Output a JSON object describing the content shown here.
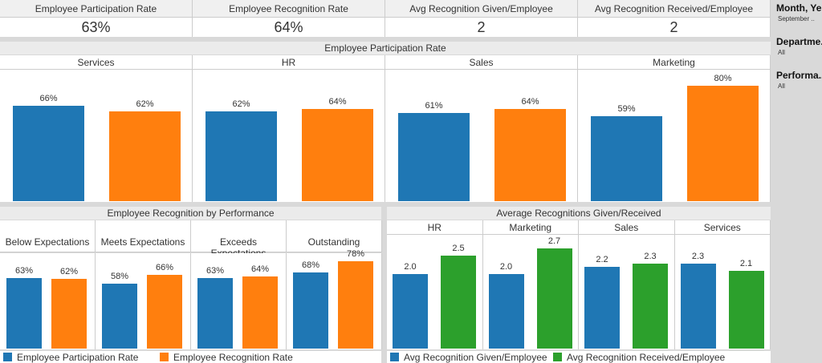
{
  "kpis": [
    {
      "label": "Employee Participation Rate",
      "value": "63%"
    },
    {
      "label": "Employee Recognition Rate",
      "value": "64%"
    },
    {
      "label": "Avg Recognition Given/Employee",
      "value": "2"
    },
    {
      "label": "Avg Recognition Received/Employee",
      "value": "2"
    }
  ],
  "filters": [
    {
      "label": "Month, Ye..",
      "value": "September .."
    },
    {
      "label": "Departme..",
      "value": "All"
    },
    {
      "label": "Performa..",
      "value": "All"
    }
  ],
  "colors": {
    "blue": "#1f77b4",
    "orange": "#ff7f0e",
    "green": "#2ca02c"
  },
  "chart_data": [
    {
      "type": "bar",
      "title": "Employee Participation Rate",
      "categories": [
        "Services",
        "HR",
        "Sales",
        "Marketing"
      ],
      "series": [
        {
          "name": "Employee Participation Rate",
          "values": [
            66,
            62,
            61,
            59
          ],
          "labels": [
            "66%",
            "62%",
            "61%",
            "59%"
          ]
        },
        {
          "name": "Employee Recognition Rate",
          "values": [
            62,
            64,
            64,
            80
          ],
          "labels": [
            "62%",
            "64%",
            "64%",
            "80%"
          ]
        }
      ]
    },
    {
      "type": "bar",
      "title": "Employee Recognition by Performance",
      "categories": [
        "Below Expectations",
        "Meets Expectations",
        "Exceeds Expectations",
        "Outstanding"
      ],
      "series": [
        {
          "name": "Employee Participation Rate",
          "values": [
            63,
            58,
            63,
            68
          ],
          "labels": [
            "63%",
            "58%",
            "63%",
            "68%"
          ]
        },
        {
          "name": "Employee Recognition Rate",
          "values": [
            62,
            66,
            64,
            78
          ],
          "labels": [
            "62%",
            "66%",
            "64%",
            "78%"
          ]
        }
      ]
    },
    {
      "type": "bar",
      "title": "Average Recognitions Given/Received",
      "categories": [
        "HR",
        "Marketing",
        "Sales",
        "Services"
      ],
      "series": [
        {
          "name": "Avg Recognition Given/Employee",
          "values": [
            2.0,
            2.0,
            2.2,
            2.3
          ],
          "labels": [
            "2.0",
            "2.0",
            "2.2",
            "2.3"
          ]
        },
        {
          "name": "Avg Recognition Received/Employee",
          "values": [
            2.5,
            2.7,
            2.3,
            2.1
          ],
          "labels": [
            "2.5",
            "2.7",
            "2.3",
            "2.1"
          ]
        }
      ]
    }
  ],
  "legends": {
    "left": [
      "Employee Participation Rate",
      "Employee Recognition Rate"
    ],
    "right": [
      "Avg Recognition Given/Employee",
      "Avg Recognition Received/Employee"
    ]
  }
}
